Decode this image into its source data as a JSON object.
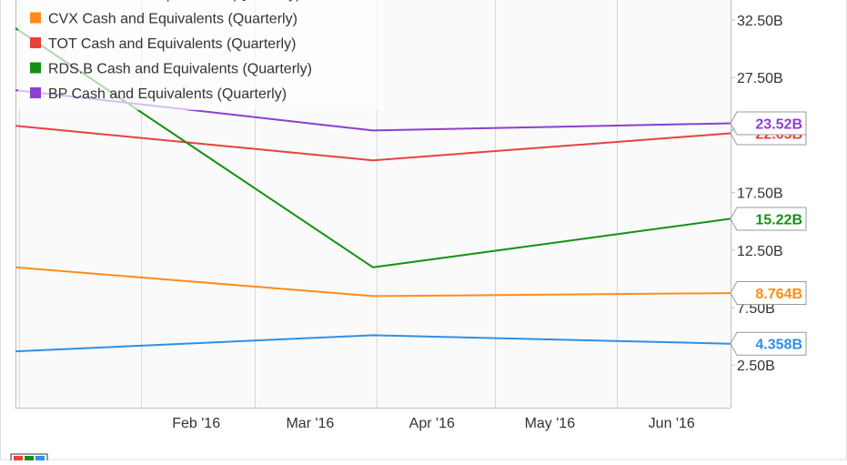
{
  "chart_data": {
    "type": "line",
    "x_tick_labels": [
      "Feb '16",
      "Mar '16",
      "Apr '16",
      "May '16",
      "Jun '16"
    ],
    "y_tick_labels": [
      "2.50B",
      "7.50B",
      "12.50B",
      "17.50B",
      "27.50B",
      "32.50B"
    ],
    "y_ticks": [
      2.5,
      7.5,
      12.5,
      17.5,
      27.5,
      32.5
    ],
    "ylim": [
      -1.2,
      34.4
    ],
    "x_dates": [
      "2015-12-31",
      "2016-03-31",
      "2016-06-30"
    ],
    "series": [
      {
        "name": "XOM Cash and Equivalents (Quarterly)",
        "color": "#2f8fe6",
        "values": [
          3.7,
          5.1,
          4.358
        ],
        "end_label": "4.358B"
      },
      {
        "name": "CVX Cash and Equivalents (Quarterly)",
        "color": "#ff8c1a",
        "values": [
          11.0,
          8.5,
          8.764
        ],
        "end_label": "8.764B"
      },
      {
        "name": "TOT Cash and Equivalents (Quarterly)",
        "color": "#e8413c",
        "values": [
          23.3,
          20.3,
          22.65
        ],
        "end_label": "22.65B"
      },
      {
        "name": "RDS.B Cash and Equivalents (Quarterly)",
        "color": "#139013",
        "values": [
          31.8,
          11.0,
          15.22
        ],
        "end_label": "15.22B"
      },
      {
        "name": "BP Cash and Equivalents (Quarterly)",
        "color": "#8c3fd0",
        "values": [
          26.4,
          22.9,
          23.52
        ],
        "end_label": "23.52B"
      }
    ],
    "legend_placement": "top-left",
    "grid": "vertical"
  }
}
